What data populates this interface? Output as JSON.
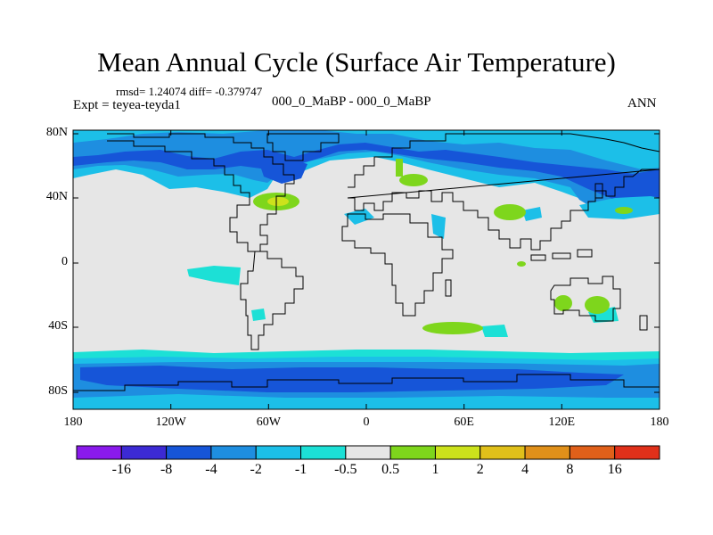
{
  "title": "Mean Annual Cycle (Surface Air Temperature)",
  "stats": "rmsd= 1.24074  diff= -0.379747",
  "experiment": "Expt = teyea-teyda1",
  "case": "000_0_MaBP - 000_0_MaBP",
  "season": "ANN",
  "lat_labels": [
    "80N",
    "40N",
    "0",
    "40S",
    "80S"
  ],
  "lon_labels": [
    "180",
    "120W",
    "60W",
    "0",
    "60E",
    "120E",
    "180"
  ],
  "colorbar": {
    "labels": [
      "-16",
      "-8",
      "-4",
      "-2",
      "-1",
      "-0.5",
      "0.5",
      "1",
      "2",
      "4",
      "8",
      "16"
    ],
    "colors": [
      "#8a1aec",
      "#3c2ad4",
      "#1655d8",
      "#1e8ee0",
      "#1cbfe8",
      "#1ce0d6",
      "#e6e6e6",
      "#7ed61c",
      "#cce21c",
      "#e0c01a",
      "#e0901a",
      "#e0601a",
      "#e0301a"
    ]
  },
  "map_colors": {
    "background": "#e6e6e6",
    "ocean_strong": "#1655d8",
    "ocean_medium": "#1e8ee0",
    "ocean_light": "#1cbfe8",
    "ocean_pale": "#1ce0d6",
    "positive": "#7ed61c",
    "coastline": "#000000"
  }
}
